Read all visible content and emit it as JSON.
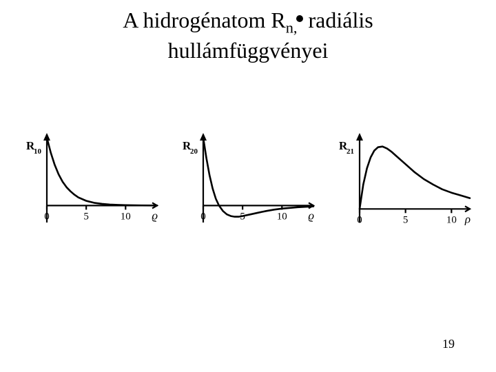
{
  "title": {
    "line1_pre": "A hidrogénatom R",
    "subscript": "n,",
    "line1_post": " radiális",
    "line2": "hullámfüggvényei",
    "fontsize": 32,
    "subscript_fontsize": 22,
    "color": "#000000"
  },
  "page_number": "19",
  "global": {
    "background": "#ffffff",
    "stroke": "#000000",
    "curve_width": 2.6,
    "axis_width": 2.2,
    "tick_len": 6,
    "label_fontsize": 15,
    "ylabel_fontsize": 15
  },
  "charts": [
    {
      "type": "line",
      "ylabel_main": "R",
      "ylabel_sub": "10",
      "xlim": [
        0,
        14
      ],
      "ylim": [
        -0.25,
        1.05
      ],
      "yzero": 0,
      "xticks": [
        0,
        5,
        10
      ],
      "xtick_labels": [
        "0",
        "5",
        "10"
      ],
      "xaxis_end_glyph": "ϱ",
      "points": [
        [
          0.0,
          1.0
        ],
        [
          0.5,
          0.78
        ],
        [
          1.0,
          0.6
        ],
        [
          1.5,
          0.46
        ],
        [
          2.0,
          0.35
        ],
        [
          2.5,
          0.27
        ],
        [
          3.0,
          0.21
        ],
        [
          3.5,
          0.16
        ],
        [
          4.0,
          0.12
        ],
        [
          5.0,
          0.07
        ],
        [
          6.0,
          0.04
        ],
        [
          7.0,
          0.025
        ],
        [
          8.0,
          0.015
        ],
        [
          9.0,
          0.01
        ],
        [
          10.0,
          0.006
        ],
        [
          12.0,
          0.002
        ],
        [
          14.0,
          0.001
        ]
      ]
    },
    {
      "type": "line",
      "ylabel_main": "R",
      "ylabel_sub": "20",
      "xlim": [
        0,
        14
      ],
      "ylim": [
        -0.25,
        1.05
      ],
      "yzero": 0,
      "xticks": [
        0,
        5,
        10
      ],
      "xtick_labels": [
        "0",
        "5",
        "10"
      ],
      "xaxis_end_glyph": "ϱ",
      "points": [
        [
          0.0,
          1.0
        ],
        [
          0.4,
          0.7
        ],
        [
          0.8,
          0.45
        ],
        [
          1.2,
          0.25
        ],
        [
          1.6,
          0.1
        ],
        [
          2.0,
          0.0
        ],
        [
          2.5,
          -0.08
        ],
        [
          3.0,
          -0.13
        ],
        [
          3.5,
          -0.155
        ],
        [
          4.0,
          -0.165
        ],
        [
          4.5,
          -0.165
        ],
        [
          5.0,
          -0.155
        ],
        [
          6.0,
          -0.13
        ],
        [
          7.0,
          -0.105
        ],
        [
          8.0,
          -0.08
        ],
        [
          9.0,
          -0.06
        ],
        [
          10.0,
          -0.045
        ],
        [
          12.0,
          -0.025
        ],
        [
          14.0,
          -0.012
        ]
      ]
    },
    {
      "type": "line",
      "ylabel_main": "R",
      "ylabel_sub": "21",
      "xlim": [
        0,
        12
      ],
      "ylim": [
        -0.1,
        0.55
      ],
      "yzero": 0,
      "xticks": [
        0,
        5,
        10
      ],
      "xtick_labels": [
        "0",
        "5",
        "10"
      ],
      "xaxis_end_glyph": "ρ",
      "points": [
        [
          0.0,
          0.0
        ],
        [
          0.4,
          0.18
        ],
        [
          0.8,
          0.3
        ],
        [
          1.2,
          0.38
        ],
        [
          1.6,
          0.43
        ],
        [
          2.0,
          0.455
        ],
        [
          2.5,
          0.46
        ],
        [
          3.0,
          0.445
        ],
        [
          3.5,
          0.42
        ],
        [
          4.0,
          0.39
        ],
        [
          5.0,
          0.33
        ],
        [
          6.0,
          0.27
        ],
        [
          7.0,
          0.22
        ],
        [
          8.0,
          0.18
        ],
        [
          9.0,
          0.145
        ],
        [
          10.0,
          0.12
        ],
        [
          11.0,
          0.1
        ],
        [
          12.0,
          0.08
        ]
      ]
    }
  ]
}
